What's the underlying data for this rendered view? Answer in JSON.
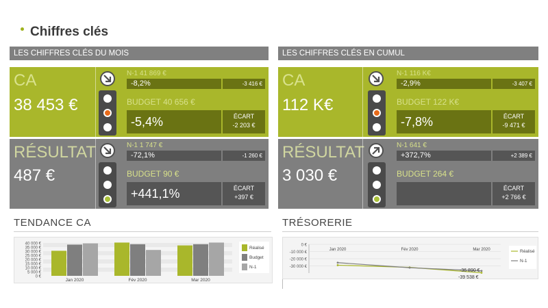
{
  "page": {
    "title": "Chiffres clés"
  },
  "colors": {
    "green": "#a9b72b",
    "grey": "#7f7f7f",
    "dark_green": "#6a7313",
    "dark_grey": "#555555",
    "light_orange": "#e86a1a",
    "light_green": "#a9c03a"
  },
  "left": {
    "header": "LES CHIFFRES CLÉS DU MOIS",
    "ca": {
      "label": "CA",
      "value": "38 453 €",
      "arrow": "arrow-down-right-icon",
      "n1_label": "N-1  41 869 €",
      "n1_pct": "-8,2%",
      "n1_diff": "-3 416 €",
      "budget_label": "BUDGET  40 656 €",
      "budget_pct": "-5,4%",
      "ecart_label": "ÉCART",
      "ecart_value": "-2 203 €",
      "active_light": "middle"
    },
    "resultat": {
      "label": "RÉSULTAT",
      "value": "487 €",
      "arrow": "arrow-down-right-icon",
      "n1_label": "N-1  1 747 €",
      "n1_pct": "-72,1%",
      "n1_diff": "-1 260 €",
      "budget_label": "BUDGET  90 €",
      "budget_pct": "+441,1%",
      "ecart_label": "ÉCART",
      "ecart_value": "+397 €",
      "active_light": "bottom"
    }
  },
  "right": {
    "header": "LES CHIFFRES CLÉS EN CUMUL",
    "ca": {
      "label": "CA",
      "value": "112 K€",
      "arrow": "arrow-down-right-icon",
      "n1_label": "N-1  116 K€",
      "n1_pct": "-2,9%",
      "n1_diff": "-3 407 €",
      "budget_label": "BUDGET  122 K€",
      "budget_pct": "-7,8%",
      "ecart_label": "ÉCART",
      "ecart_value": "-9 471 €",
      "active_light": "middle"
    },
    "resultat": {
      "label": "RÉSULTAT",
      "value": "3 030 €",
      "arrow": "arrow-up-right-icon",
      "n1_label": "N-1  641 €",
      "n1_pct": "+372,7%",
      "n1_diff": "+2 389 €",
      "budget_label": "BUDGET  264 €",
      "budget_pct": "",
      "ecart_label": "ÉCART",
      "ecart_value": "+2 766 €",
      "active_light": "bottom"
    }
  },
  "chart_data": [
    {
      "type": "bar",
      "title": "TENDANCE CA",
      "categories": [
        "Jan 2020",
        "Fév 2020",
        "Mar 2020"
      ],
      "series": [
        {
          "name": "Réalisé",
          "color": "#a9b72b",
          "values": [
            30500,
            40500,
            37000
          ]
        },
        {
          "name": "Budget",
          "color": "#7f7f7f",
          "values": [
            38000,
            38500,
            38500
          ]
        },
        {
          "name": "N-1",
          "color": "#a6a6a6",
          "values": [
            39500,
            31500,
            40500
          ]
        }
      ],
      "yticks": [
        "40 000 €",
        "35 000 €",
        "30 000 €",
        "25 000 €",
        "20 000 €",
        "15 000 €",
        "10 000 €",
        "5 000 €",
        "0 €"
      ],
      "ylim": [
        0,
        40000
      ],
      "legend": "right"
    },
    {
      "type": "line",
      "title": "TRÉSORERIE",
      "categories": [
        "Jan 2020",
        "Fév 2020",
        "Mar 2020"
      ],
      "series": [
        {
          "name": "Réalisé",
          "color": "#a9b72b",
          "values": [
            -29000,
            -32000,
            -39538
          ]
        },
        {
          "name": "N-1",
          "color": "#7f7f7f",
          "values": [
            -25500,
            -32500,
            -36890
          ]
        }
      ],
      "data_labels": [
        "-36 890 €",
        "-39 538 €"
      ],
      "yticks": [
        "0 €",
        "-10 000 €",
        "-20 000 €",
        "-30 000 €"
      ],
      "ylim": [
        -40000,
        0
      ],
      "legend": "right"
    }
  ]
}
